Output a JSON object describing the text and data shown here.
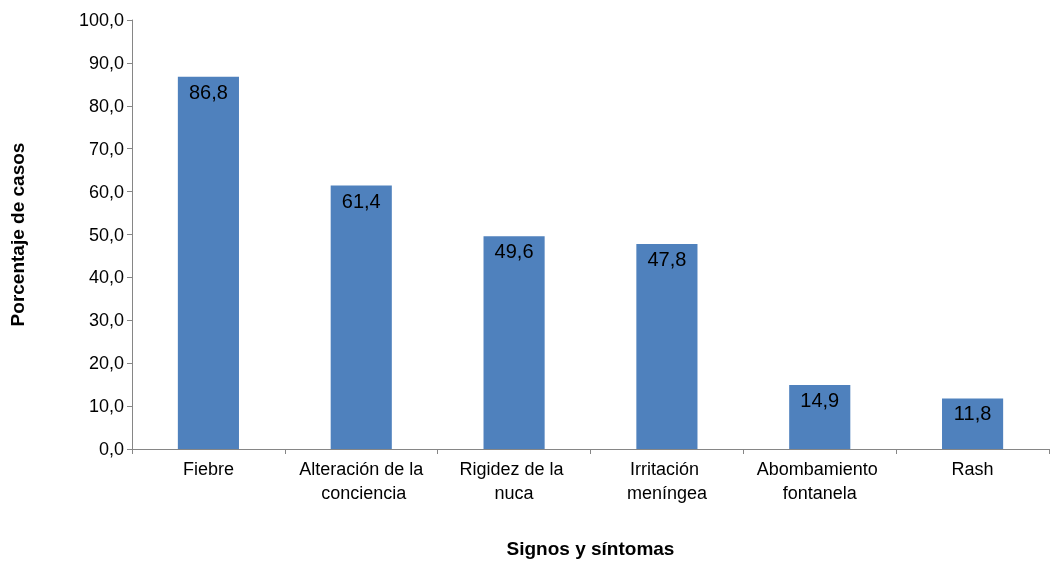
{
  "chart_data": {
    "type": "bar",
    "xlabel": "Signos y síntomas",
    "ylabel": "Porcentaje de casos",
    "categories": [
      "Fiebre",
      "Alteración de la conciencia",
      "Rigidez de la nuca",
      "Irritación meníngea",
      "Abombamiento fontanela",
      "Rash"
    ],
    "values": [
      86.8,
      61.4,
      49.6,
      47.8,
      14.9,
      11.8
    ],
    "color": "#4f81bd",
    "value_labels": [
      "86,8",
      "61,4",
      "49,6",
      "47,8",
      "14,9",
      "11,8"
    ],
    "ylim": [
      0,
      100
    ],
    "yticks": [
      {
        "value": 0,
        "label": "0,0"
      },
      {
        "value": 10,
        "label": "10,0"
      },
      {
        "value": 20,
        "label": "20,0"
      },
      {
        "value": 30,
        "label": "30,0"
      },
      {
        "value": 40,
        "label": "40,0"
      },
      {
        "value": 50,
        "label": "50,0"
      },
      {
        "value": 60,
        "label": "60,0"
      },
      {
        "value": 70,
        "label": "70,0"
      },
      {
        "value": 80,
        "label": "80,0"
      },
      {
        "value": 90,
        "label": "90,0"
      },
      {
        "value": 100,
        "label": "100,0"
      }
    ],
    "grid": false
  }
}
